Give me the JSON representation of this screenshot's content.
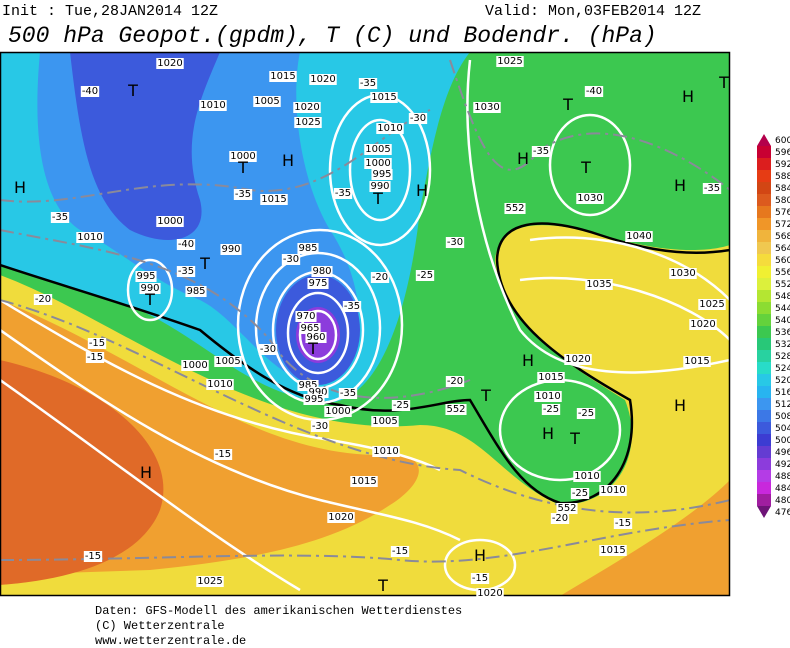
{
  "header": {
    "init": "Init : Tue,28JAN2014 12Z",
    "valid": "Valid: Mon,03FEB2014 12Z",
    "title": "500 hPa Geopot.(gpdm), T (C) und Bodendr. (hPa)"
  },
  "map": {
    "labels": [
      "T",
      "H",
      "1020",
      "-40",
      "1010",
      "1005",
      "1015",
      "1020",
      "-35",
      "1015",
      "1020",
      "1025",
      "1010",
      "-30",
      "H",
      "1000",
      "T",
      "1005",
      "1000",
      "995",
      "990",
      "T",
      "1015",
      "-35",
      "-35",
      "1000",
      "1010",
      "-40",
      "990",
      "985",
      "-30",
      "T",
      "995",
      "990",
      "T",
      "-35",
      "985",
      "980",
      "975",
      "-35",
      "970",
      "965",
      "960",
      "T",
      "-30",
      "1000",
      "1005",
      "1010",
      "985",
      "990",
      "995",
      "-35",
      "1000",
      "-30",
      "1005",
      "-25",
      "-20",
      "T",
      "552",
      "-15",
      "-15",
      "-20",
      "-35",
      "H",
      "-15",
      "1010",
      "1015",
      "1020",
      "-15",
      "1025",
      "-15",
      "H",
      "-15",
      "T",
      "1020",
      "-20",
      "-15",
      "1015",
      "552",
      "-25",
      "1010",
      "1010",
      "H",
      "T",
      "-25",
      "-25",
      "1015",
      "1010",
      "1020",
      "H",
      "H",
      "1015",
      "1020",
      "1025",
      "1030",
      "1035",
      "1040",
      "552",
      "-35",
      "H",
      "1030",
      "T",
      "-35",
      "H",
      "1030",
      "T",
      "-40",
      "H",
      "T",
      "1025",
      "-30",
      "-25",
      "-20",
      "H"
    ]
  },
  "legend": {
    "levels": [
      600,
      596,
      592,
      588,
      584,
      580,
      576,
      572,
      568,
      564,
      560,
      556,
      552,
      548,
      544,
      540,
      536,
      532,
      528,
      524,
      520,
      516,
      512,
      508,
      504,
      500,
      496,
      492,
      488,
      484,
      480,
      476
    ],
    "colors": [
      "#b4004b",
      "#c80032",
      "#dc1e1e",
      "#e63c14",
      "#d24614",
      "#dc5a1e",
      "#e6781e",
      "#f09628",
      "#f0b43c",
      "#f0c850",
      "#f5dc3c",
      "#f0f032",
      "#dcf03c",
      "#b4e632",
      "#8cdc32",
      "#64d23c",
      "#3cc850",
      "#28c878",
      "#28d2a0",
      "#28dcc8",
      "#28c8e6",
      "#28b4f0",
      "#3c96f0",
      "#3c78e6",
      "#3c5adc",
      "#3c3cd2",
      "#643cd2",
      "#8c3cdc",
      "#b43ce6",
      "#c828dc",
      "#a01ea0",
      "#6e1478"
    ]
  },
  "footer": {
    "lines": [
      "Daten: GFS-Modell des amerikanischen Wetterdienstes",
      "(C) Wetterzentrale",
      "www.wetterzentrale.de"
    ]
  }
}
